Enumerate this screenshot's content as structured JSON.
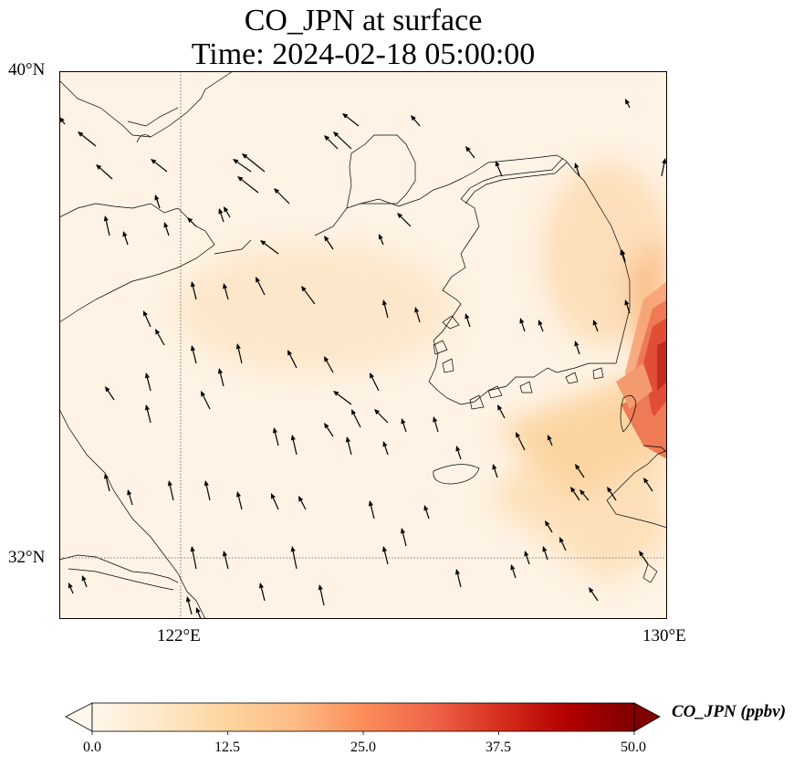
{
  "title": {
    "line1": "CO_JPN at surface",
    "line2": "Time: 2024-02-18 05:00:00"
  },
  "axes": {
    "lat_labels": [
      "40°N",
      "32°N"
    ],
    "lon_labels": [
      "122°E",
      "130°E"
    ],
    "lon_range": [
      120,
      130
    ],
    "lat_range": [
      31,
      40
    ],
    "gridlines": "dotted, at 122°E and 32°N"
  },
  "colorbar": {
    "label": "CO_JPN (ppbv)",
    "ticks": [
      "0.0",
      "12.5",
      "25.0",
      "37.5",
      "50.0"
    ],
    "colormap": "OrRd",
    "extend": "both",
    "colors": [
      "#fff7ec",
      "#fee8c8",
      "#fdd49e",
      "#fdbb84",
      "#fc8d59",
      "#ef6548",
      "#d7301f",
      "#b30000",
      "#7f0000"
    ]
  },
  "field": {
    "max_region": "east edge near 129.5°E, 35°N (southeastern Korean peninsula coast)",
    "background": "very pale orange, values near 0–10 ppbv",
    "plume": "light orange plume extending from Korea southeast corner toward the southwest"
  },
  "wind": {
    "description": "black arrows, mostly pointing north to north-northwest"
  }
}
